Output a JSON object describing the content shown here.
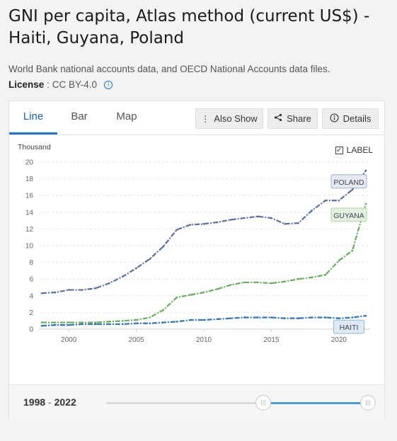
{
  "header": {
    "title": "GNI per capita, Atlas method (current US$) - Haiti, Guyana, Poland",
    "source": "World Bank national accounts data, and OECD National Accounts data files.",
    "license_label": "License",
    "license_value": ": CC BY-4.0"
  },
  "tabs": [
    {
      "label": "Line",
      "active": true
    },
    {
      "label": "Bar",
      "active": false
    },
    {
      "label": "Map",
      "active": false
    }
  ],
  "toolbar": {
    "also_show": "Also Show",
    "share": "Share",
    "details": "Details"
  },
  "label_toggle": {
    "label": "LABEL",
    "checked": true
  },
  "range": {
    "start": "1998",
    "separator": "-",
    "end": "2022",
    "handle_start_fraction": 0.6,
    "handle_end_fraction": 1.0
  },
  "chart_data": {
    "type": "line",
    "unit_label": "Thousand",
    "x": [
      1998,
      1999,
      2000,
      2001,
      2002,
      2003,
      2004,
      2005,
      2006,
      2007,
      2008,
      2009,
      2010,
      2011,
      2012,
      2013,
      2014,
      2015,
      2016,
      2017,
      2018,
      2019,
      2020,
      2021,
      2022
    ],
    "xticks": [
      2000,
      2005,
      2010,
      2015,
      2020
    ],
    "yticks": [
      0,
      2,
      4,
      6,
      8,
      10,
      12,
      14,
      16,
      18,
      20
    ],
    "ylim": [
      0,
      20
    ],
    "xlim": [
      1998,
      2022
    ],
    "grid": true,
    "series": [
      {
        "name": "POLAND",
        "color": "#5b6f9c",
        "label_bg": "#e6e8f2",
        "values": [
          4.3,
          4.4,
          4.7,
          4.7,
          4.9,
          5.5,
          6.3,
          7.3,
          8.4,
          9.9,
          11.9,
          12.5,
          12.6,
          12.8,
          13.1,
          13.3,
          13.5,
          13.3,
          12.6,
          12.7,
          14.2,
          15.4,
          15.4,
          16.7,
          19.0
        ]
      },
      {
        "name": "GUYANA",
        "color": "#6aab5e",
        "label_bg": "#e3f1df",
        "values": [
          0.8,
          0.8,
          0.8,
          0.8,
          0.8,
          0.9,
          1.0,
          1.1,
          1.4,
          2.3,
          3.8,
          4.1,
          4.4,
          4.8,
          5.3,
          5.6,
          5.6,
          5.5,
          5.7,
          6.0,
          6.2,
          6.5,
          8.2,
          9.4,
          15.0
        ]
      },
      {
        "name": "HAITI",
        "color": "#2f73b5",
        "label_bg": "#dde9f5",
        "values": [
          0.4,
          0.5,
          0.5,
          0.6,
          0.6,
          0.6,
          0.6,
          0.7,
          0.7,
          0.8,
          0.9,
          1.1,
          1.1,
          1.2,
          1.3,
          1.4,
          1.4,
          1.4,
          1.3,
          1.3,
          1.4,
          1.4,
          1.3,
          1.4,
          1.6
        ]
      }
    ]
  }
}
